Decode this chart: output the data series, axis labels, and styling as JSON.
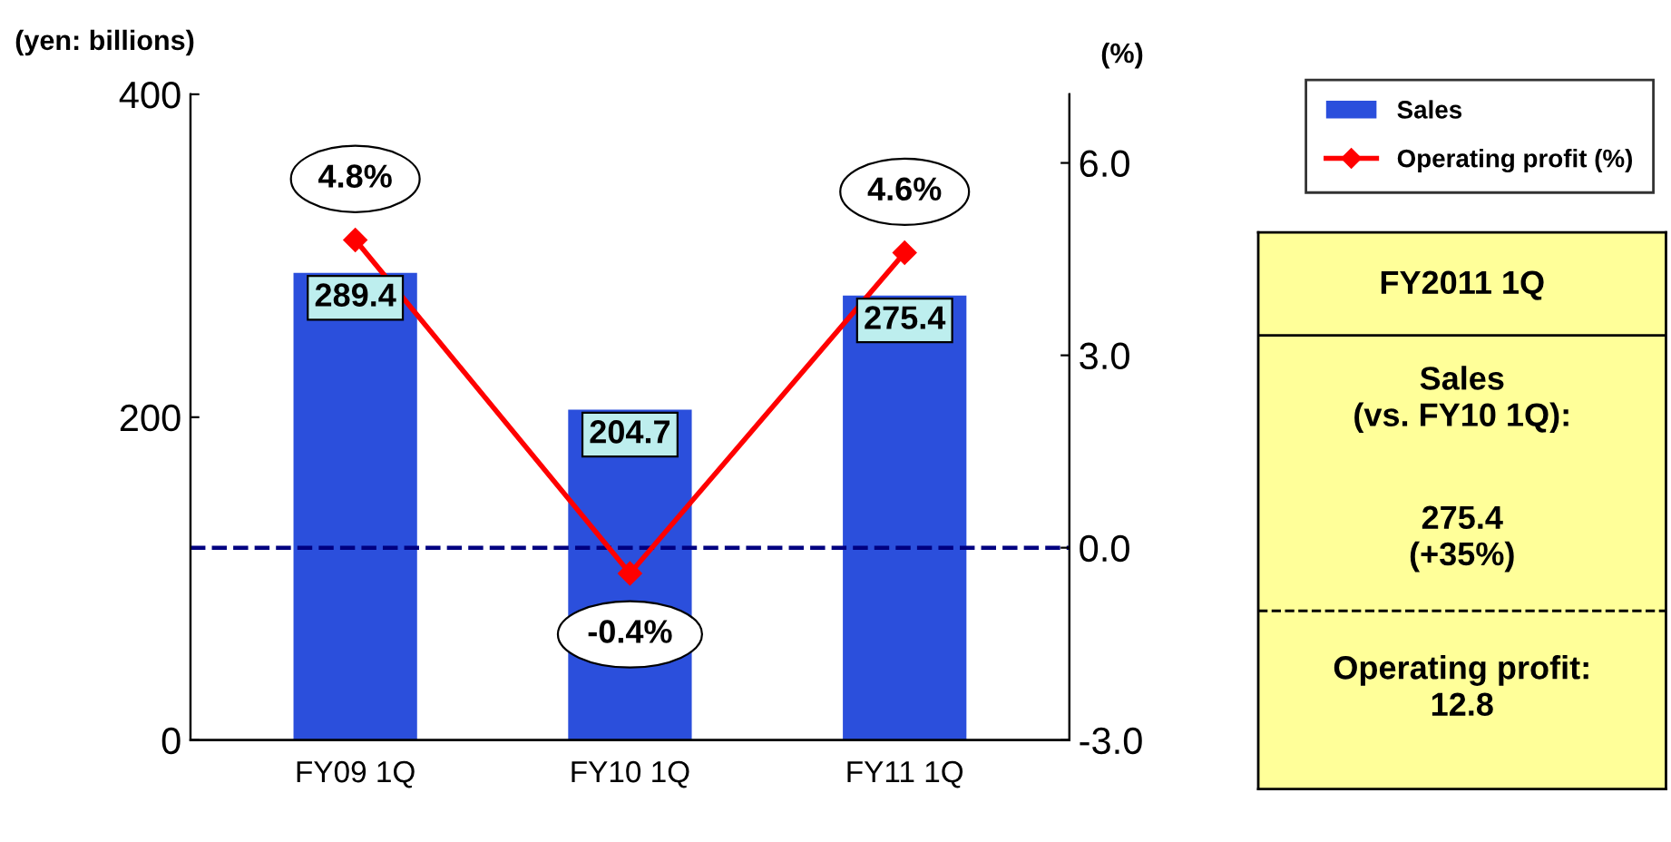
{
  "chart_data": [
    {
      "type": "bar",
      "categories": [
        "FY09 1Q",
        "FY10 1Q",
        "FY11 1Q"
      ],
      "ylabel": "(yen: billions)",
      "y2label": "(%)",
      "ylim": [
        0,
        400
      ],
      "yticks": [
        0,
        200,
        400
      ],
      "y2lim": [
        -3,
        7.07
      ],
      "y2ticks": [
        {
          "value": -3,
          "label": "-3.0"
        },
        {
          "value": 0,
          "label": "0.0"
        },
        {
          "value": 3,
          "label": "3.0"
        },
        {
          "value": 6,
          "label": "6.0"
        }
      ],
      "series": [
        {
          "name": "Sales",
          "type": "bar",
          "color": "#2b4fdc",
          "values": [
            289.4,
            204.7,
            275.4
          ],
          "value_labels": [
            "289.4",
            "204.7",
            "275.4"
          ]
        },
        {
          "name": "Operating profit (%)",
          "type": "line",
          "axis": "y2",
          "color": "#ff0000",
          "marker": "diamond",
          "values": [
            4.8,
            -0.4,
            4.6
          ],
          "value_labels": [
            "4.8%",
            "-0.4%",
            "4.6%"
          ]
        }
      ],
      "ref_lines": [
        {
          "axis": "y2",
          "value": 0,
          "color": "#000080",
          "line_style": "dashed"
        }
      ],
      "grid": false,
      "legend": "top right"
    },
    {
      "type": "other",
      "color": "#ffff99",
      "annotations": [
        "FY2011 1Q",
        "Sales\n(vs. FY10 1Q):",
        "275.4\n(+35%)",
        "Operating profit:\n12.8"
      ]
    }
  ]
}
